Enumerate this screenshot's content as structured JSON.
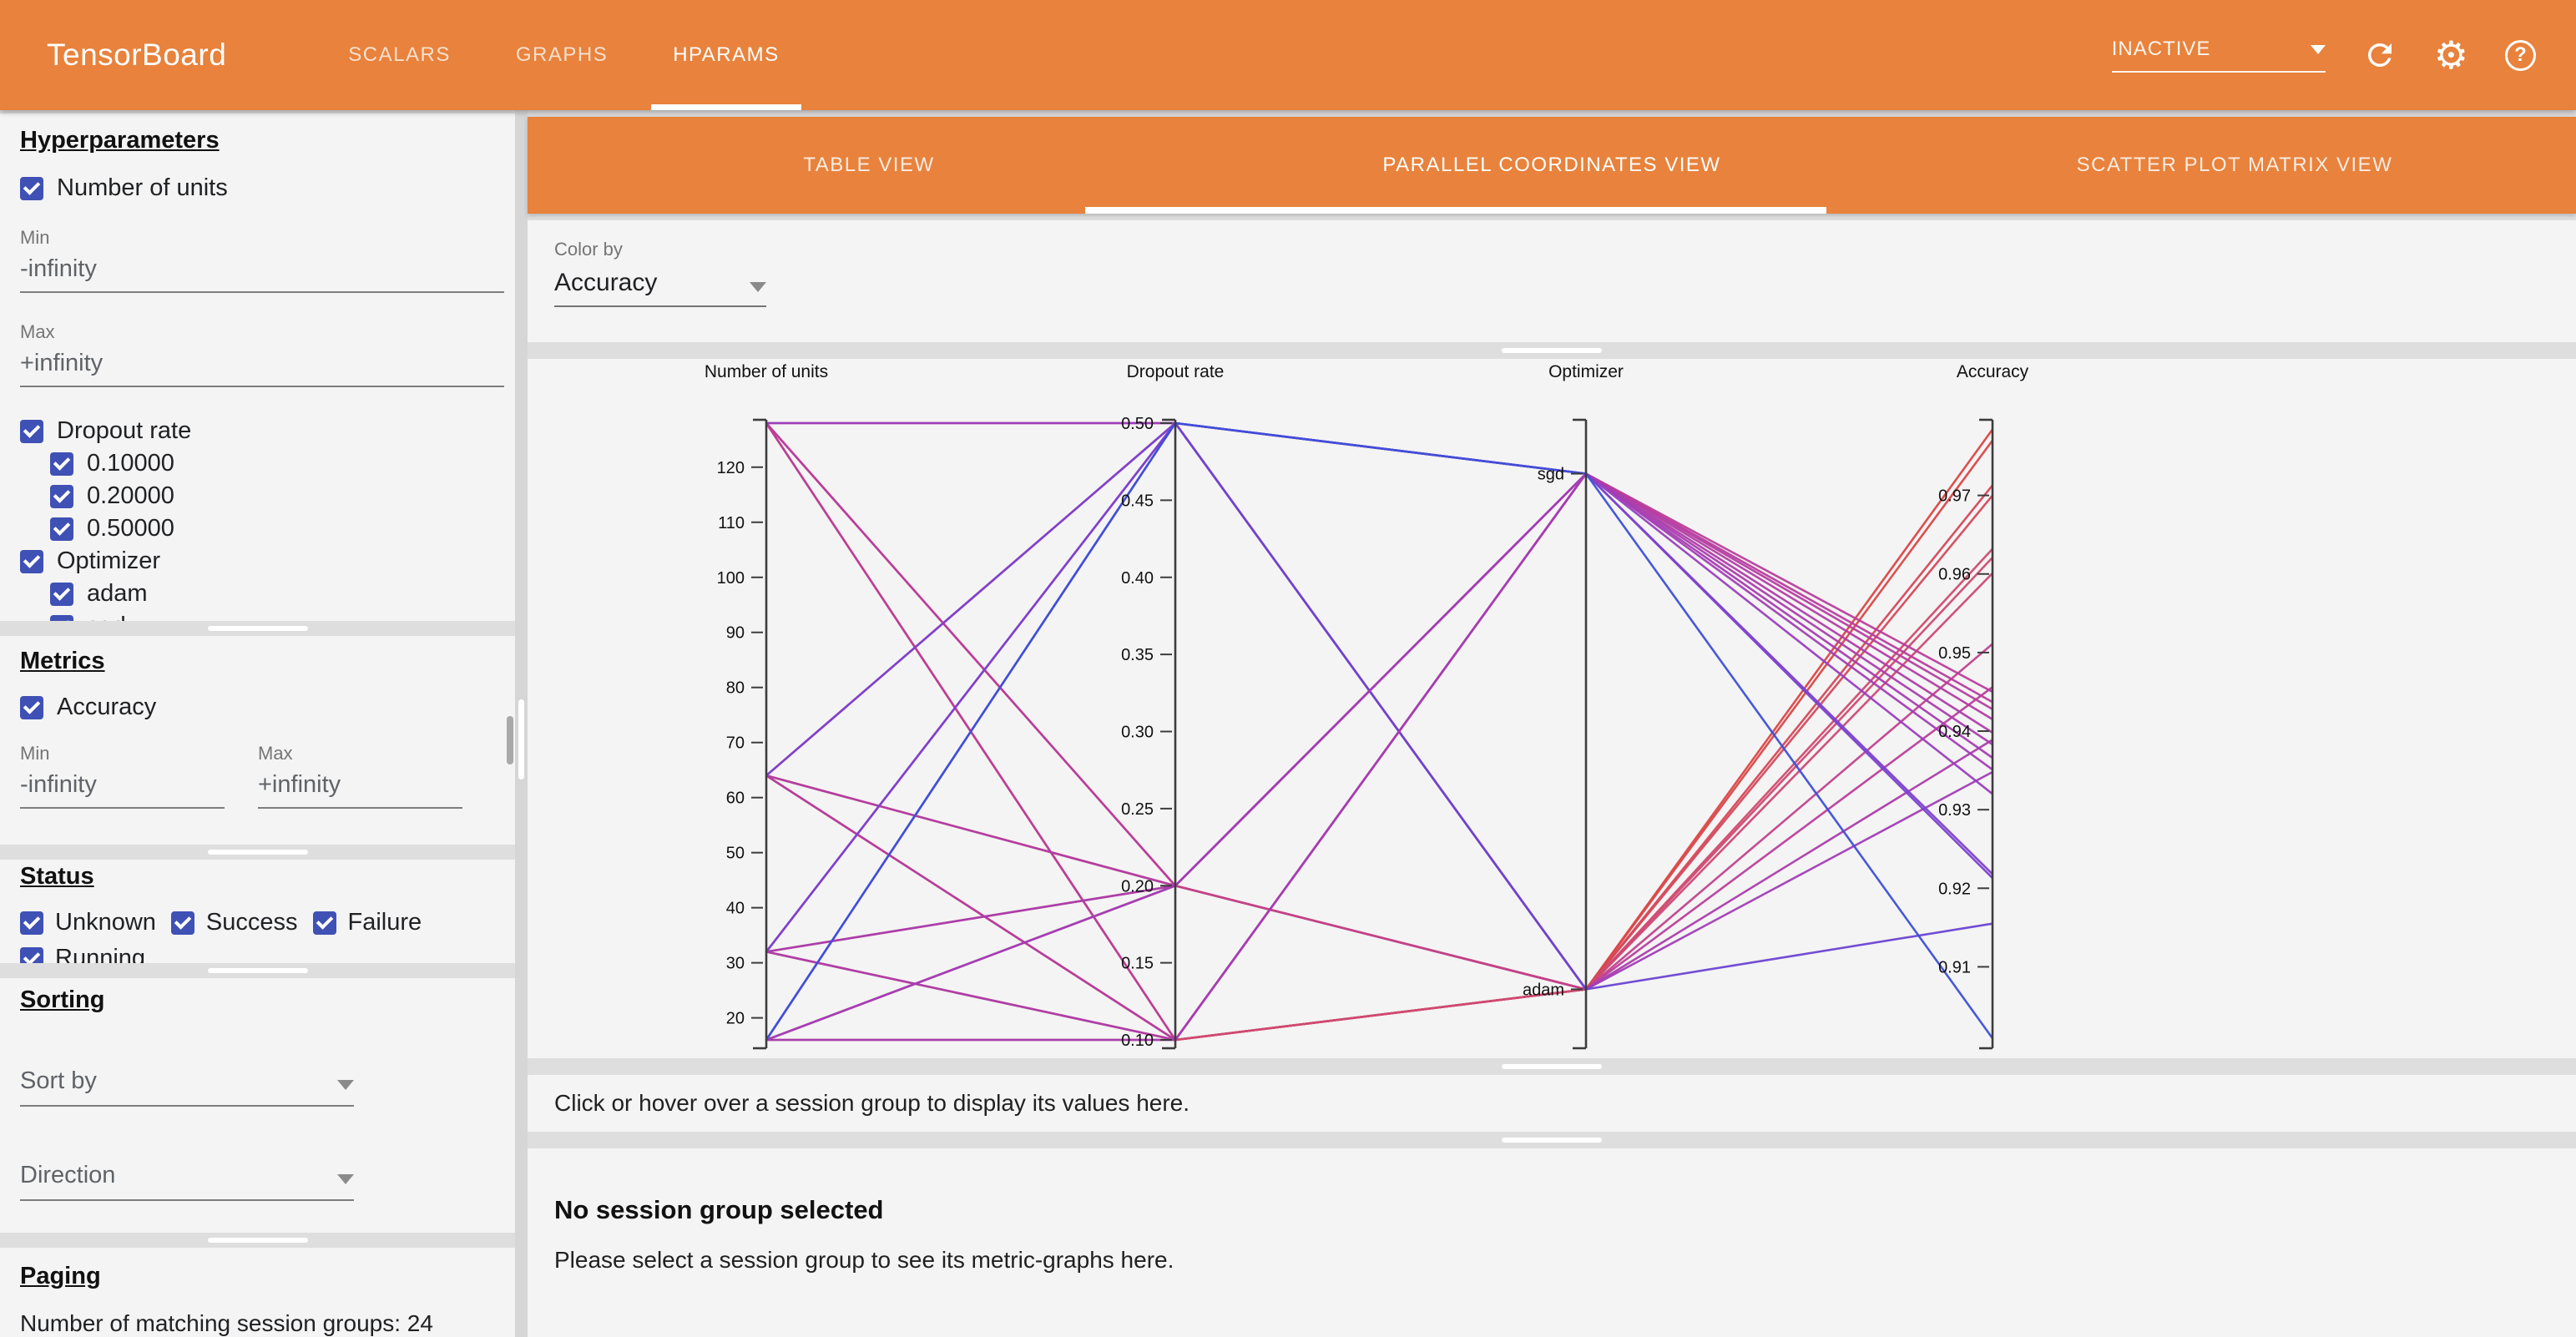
{
  "header": {
    "title": "TensorBoard",
    "tabs": [
      {
        "label": "SCALARS",
        "active": false
      },
      {
        "label": "GRAPHS",
        "active": false
      },
      {
        "label": "HPARAMS",
        "active": true
      }
    ],
    "run_selector": {
      "value": "INACTIVE"
    },
    "icons": {
      "names": [
        "refresh-icon",
        "settings-icon",
        "help-icon"
      ],
      "settings_glyph": "⚙",
      "help_glyph": "?"
    }
  },
  "sidebar": {
    "hyperparameters": {
      "heading": "Hyperparameters",
      "items": [
        {
          "label": "Number of units",
          "checked": true,
          "min_label": "Min",
          "min_value": "-infinity",
          "max_label": "Max",
          "max_value": "+infinity"
        },
        {
          "label": "Dropout rate",
          "checked": true,
          "options": [
            "0.10000",
            "0.20000",
            "0.50000"
          ]
        },
        {
          "label": "Optimizer",
          "checked": true,
          "options": [
            "adam",
            "sgd"
          ]
        }
      ]
    },
    "metrics": {
      "heading": "Metrics",
      "items": [
        {
          "label": "Accuracy",
          "checked": true,
          "min_label": "Min",
          "min_value": "-infinity",
          "max_label": "Max",
          "max_value": "+infinity"
        }
      ]
    },
    "status": {
      "heading": "Status",
      "options": [
        {
          "label": "Unknown",
          "checked": true
        },
        {
          "label": "Success",
          "checked": true
        },
        {
          "label": "Failure",
          "checked": true
        },
        {
          "label": "Running",
          "checked": true
        }
      ]
    },
    "sorting": {
      "heading": "Sorting",
      "sort_by_label": "Sort by",
      "direction_label": "Direction"
    },
    "paging": {
      "heading": "Paging",
      "summary": "Number of matching session groups: 24"
    }
  },
  "main": {
    "view_tabs": [
      {
        "label": "TABLE VIEW",
        "active": false
      },
      {
        "label": "PARALLEL COORDINATES VIEW",
        "active": true
      },
      {
        "label": "SCATTER PLOT MATRIX VIEW",
        "active": false
      }
    ],
    "color_by": {
      "label": "Color by",
      "value": "Accuracy"
    },
    "hover_message": "Click or hover over a session group to display its values here.",
    "empty_state": {
      "title": "No session group selected",
      "subtitle": "Please select a session group to see its metric-graphs here."
    }
  },
  "chart_data": {
    "type": "parallel_coordinates",
    "axes": [
      {
        "name": "number_of_units",
        "label": "Number of units",
        "scale": "linear",
        "domain": [
          16,
          128
        ],
        "ticks": [
          20,
          30,
          40,
          50,
          60,
          70,
          80,
          90,
          100,
          110,
          120
        ],
        "tick_format": "int"
      },
      {
        "name": "dropout_rate",
        "label": "Dropout rate",
        "scale": "linear",
        "domain": [
          0.1,
          0.5
        ],
        "ticks": [
          0.1,
          0.15,
          0.2,
          0.25,
          0.3,
          0.35,
          0.4,
          0.45,
          0.5
        ],
        "tick_format": "2dp"
      },
      {
        "name": "optimizer",
        "label": "Optimizer",
        "scale": "categorical",
        "categories": [
          "sgd",
          "adam"
        ],
        "positions": {
          "adam": 0.082,
          "sgd": 0.918
        }
      },
      {
        "name": "accuracy",
        "label": "Accuracy",
        "scale": "linear",
        "domain": [
          0.9007,
          0.9792
        ],
        "ticks": [
          0.91,
          0.92,
          0.93,
          0.94,
          0.95,
          0.96,
          0.97
        ],
        "tick_format": "2dp"
      }
    ],
    "color": {
      "by": "accuracy",
      "domain": [
        0.9007,
        0.9792
      ],
      "stops": [
        {
          "t": 0.0,
          "c": "#3d4fd8"
        },
        {
          "t": 0.33,
          "c": "#8c3ecc"
        },
        {
          "t": 0.55,
          "c": "#b83d9e"
        },
        {
          "t": 0.78,
          "c": "#cf4a72"
        },
        {
          "t": 1.0,
          "c": "#da4742"
        }
      ]
    },
    "columns": [
      "number_of_units",
      "dropout_rate",
      "optimizer",
      "accuracy"
    ],
    "sessions": [
      [
        128,
        0.1,
        "adam",
        0.9784
      ],
      [
        128,
        0.2,
        "adam",
        0.9713
      ],
      [
        64,
        0.1,
        "adam",
        0.977
      ],
      [
        64,
        0.2,
        "adam",
        0.97
      ],
      [
        32,
        0.1,
        "adam",
        0.9632
      ],
      [
        32,
        0.2,
        "adam",
        0.9601
      ],
      [
        16,
        0.1,
        "adam",
        0.9621
      ],
      [
        16,
        0.2,
        "adam",
        0.9511
      ],
      [
        128,
        0.5,
        "adam",
        0.9456
      ],
      [
        64,
        0.5,
        "adam",
        0.9389
      ],
      [
        32,
        0.5,
        "adam",
        0.9348
      ],
      [
        16,
        0.5,
        "adam",
        0.9155
      ],
      [
        128,
        0.1,
        "sgd",
        0.945
      ],
      [
        128,
        0.2,
        "sgd",
        0.9437
      ],
      [
        64,
        0.1,
        "sgd",
        0.9428
      ],
      [
        64,
        0.2,
        "sgd",
        0.9415
      ],
      [
        32,
        0.1,
        "sgd",
        0.9398
      ],
      [
        32,
        0.2,
        "sgd",
        0.9383
      ],
      [
        16,
        0.1,
        "sgd",
        0.9366
      ],
      [
        16,
        0.2,
        "sgd",
        0.9351
      ],
      [
        128,
        0.5,
        "sgd",
        0.932
      ],
      [
        64,
        0.5,
        "sgd",
        0.9218
      ],
      [
        32,
        0.5,
        "sgd",
        0.9213
      ],
      [
        16,
        0.5,
        "sgd",
        0.9009
      ]
    ]
  }
}
